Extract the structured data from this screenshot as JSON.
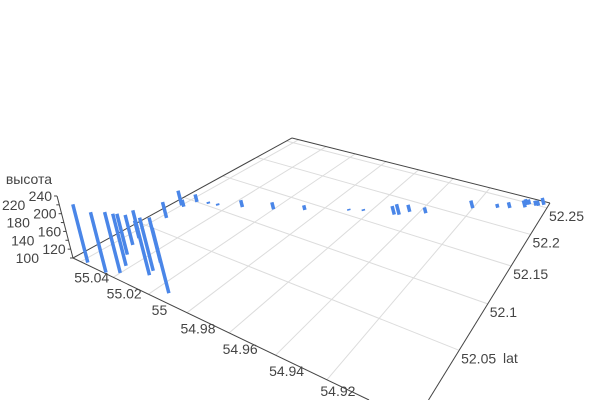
{
  "chart_data": {
    "type": "bar",
    "projection": "3d",
    "title": "",
    "x_axis": {
      "title": "",
      "range": [
        54.89,
        55.045
      ],
      "reversed": true,
      "ticks": [
        "55.04",
        "55.02",
        "55",
        "54.98",
        "54.96",
        "54.94",
        "54.92"
      ],
      "tick_values": [
        55.04,
        55.02,
        55.0,
        54.98,
        54.96,
        54.94,
        54.92
      ]
    },
    "y_axis": {
      "title": "lat",
      "range": [
        51.99,
        52.26
      ],
      "ticks": [
        "52.05",
        "52.1",
        "52.15",
        "52.2",
        "52.25"
      ],
      "tick_values": [
        52.05,
        52.1,
        52.15,
        52.2,
        52.25
      ]
    },
    "z_axis": {
      "title": "высота",
      "range": [
        100,
        240
      ],
      "ticks": [
        "100",
        "120",
        "140",
        "160",
        "180",
        "200",
        "220",
        "240"
      ],
      "tick_values": [
        100,
        120,
        140,
        160,
        180,
        200,
        220,
        240
      ]
    },
    "grid": true,
    "bar_color": "#4a86e8",
    "bars": [
      {
        "x": 55.037,
        "lat": 51.992,
        "z": 230
      },
      {
        "x": 55.025,
        "lat": 51.991,
        "z": 231
      },
      {
        "x": 55.02,
        "lat": 51.996,
        "z": 232
      },
      {
        "x": 55.022,
        "lat": 52.004,
        "z": 215
      },
      {
        "x": 55.028,
        "lat": 52.014,
        "z": 193
      },
      {
        "x": 55.032,
        "lat": 52.025,
        "z": 170
      },
      {
        "x": 55.034,
        "lat": 52.034,
        "z": 142
      },
      {
        "x": 55.012,
        "lat": 52.02,
        "z": 200
      },
      {
        "x": 55.009,
        "lat": 52.005,
        "z": 240
      },
      {
        "x": 55.01,
        "lat": 52.01,
        "z": 216
      },
      {
        "x": 54.994,
        "lat": 51.998,
        "z": 234
      },
      {
        "x": 55.037,
        "lat": 52.067,
        "z": 140
      },
      {
        "x": 55.04,
        "lat": 52.089,
        "z": 138
      },
      {
        "x": 55.038,
        "lat": 52.088,
        "z": 118
      },
      {
        "x": 55.036,
        "lat": 52.1,
        "z": 120
      },
      {
        "x": 55.03,
        "lat": 52.103,
        "z": 105
      },
      {
        "x": 55.025,
        "lat": 52.105,
        "z": 105
      },
      {
        "x": 55.014,
        "lat": 52.114,
        "z": 118
      },
      {
        "x": 55.0,
        "lat": 52.125,
        "z": 118
      },
      {
        "x": 54.987,
        "lat": 52.138,
        "z": 112
      },
      {
        "x": 54.969,
        "lat": 52.157,
        "z": 104
      },
      {
        "x": 54.963,
        "lat": 52.163,
        "z": 104
      },
      {
        "x": 54.949,
        "lat": 52.171,
        "z": 122
      },
      {
        "x": 54.947,
        "lat": 52.173,
        "z": 127
      },
      {
        "x": 54.944,
        "lat": 52.182,
        "z": 118
      },
      {
        "x": 54.937,
        "lat": 52.187,
        "z": 115
      },
      {
        "x": 54.92,
        "lat": 52.216,
        "z": 120
      },
      {
        "x": 54.91,
        "lat": 52.228,
        "z": 110
      },
      {
        "x": 54.905,
        "lat": 52.233,
        "z": 115
      },
      {
        "x": 54.899,
        "lat": 52.241,
        "z": 118
      },
      {
        "x": 54.899,
        "lat": 52.246,
        "z": 115
      },
      {
        "x": 54.898,
        "lat": 52.248,
        "z": 113
      },
      {
        "x": 54.895,
        "lat": 52.249,
        "z": 113
      },
      {
        "x": 54.894,
        "lat": 52.25,
        "z": 113
      },
      {
        "x": 54.892,
        "lat": 52.254,
        "z": 118
      }
    ]
  }
}
